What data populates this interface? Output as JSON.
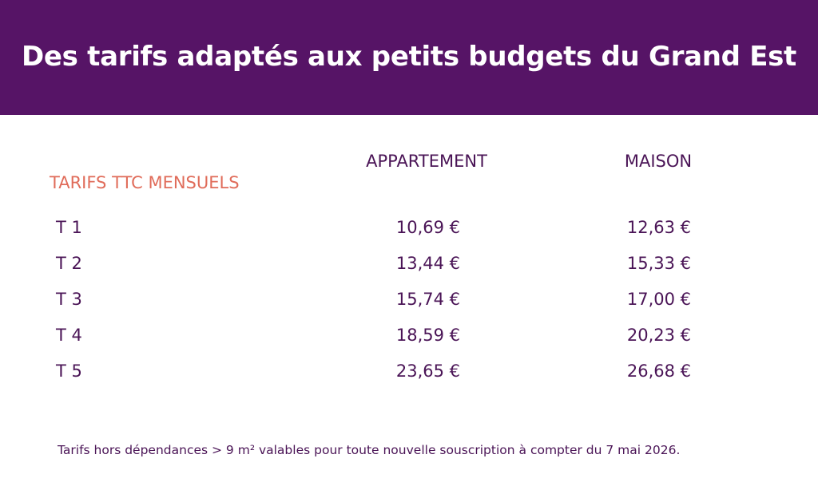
{
  "title": "Des tarifs adaptés aux petits budgets du Grand Est",
  "section_label": "TARIFS TTC MENSUELS",
  "columns": {
    "appartement": "APPARTEMENT",
    "maison": "MAISON"
  },
  "rows": [
    {
      "type": "T 1",
      "appartement": "10,69 €",
      "maison": "12,63 €"
    },
    {
      "type": "T 2",
      "appartement": "13,44 €",
      "maison": "15,33 €"
    },
    {
      "type": "T 3",
      "appartement": "15,74 €",
      "maison": "17,00 €"
    },
    {
      "type": "T 4",
      "appartement": "18,59 €",
      "maison": "20,23 €"
    },
    {
      "type": "T 5",
      "appartement": "23,65 €",
      "maison": "26,68 €"
    }
  ],
  "footnote": "Tarifs hors dépendances > 9 m² valables pour toute nouvelle souscription à compter du 7 mai 2026.",
  "colors": {
    "banner": "#561466",
    "text": "#4a1456",
    "accent": "#e06c5a"
  }
}
